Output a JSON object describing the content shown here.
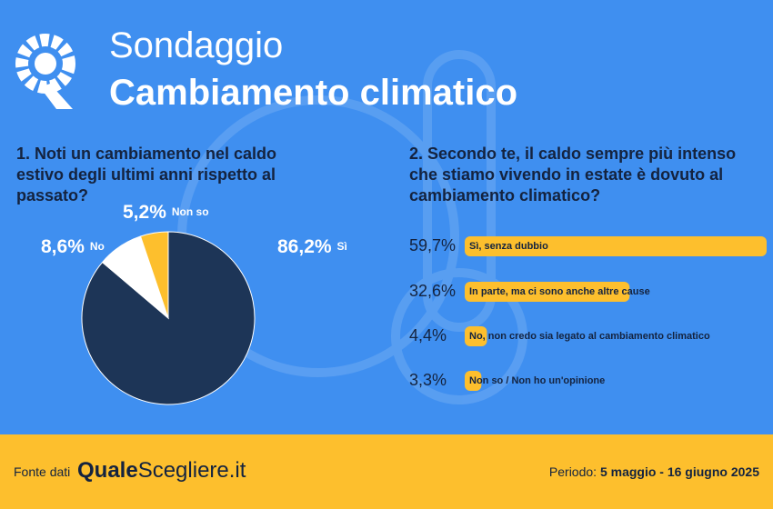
{
  "header": {
    "title_light": "Sondaggio",
    "title_bold": "Cambiamento climatico"
  },
  "chart_data": [
    {
      "type": "pie",
      "title": "1. Noti un cambiamento nel caldo estivo degli ultimi anni rispetto al passato?",
      "categories": [
        "Sì",
        "No",
        "Non so"
      ],
      "values": [
        86.2,
        8.6,
        5.2
      ],
      "value_labels": [
        "86,2%",
        "8,6%",
        "5,2%"
      ],
      "colors": [
        "#1d3557",
        "#ffffff",
        "#fdbf2d"
      ]
    },
    {
      "type": "bar",
      "title": "2. Secondo te, il caldo sempre più intenso che stiamo vivendo in estate è dovuto al cambiamento climatico?",
      "categories": [
        "Sì, senza dubbio",
        "In parte, ma ci sono anche altre cause",
        "No, non credo sia legato al cambiamento climatico",
        "Non so / Non ho un'opinione"
      ],
      "values": [
        59.7,
        32.6,
        4.4,
        3.3
      ],
      "value_labels": [
        "59,7%",
        "32,6%",
        "4,4%",
        "3,3%"
      ],
      "color": "#fdbf2d"
    }
  ],
  "footer": {
    "source_label": "Fonte dati",
    "logo_bold": "Quale",
    "logo_regular": "Scegliere.it",
    "period_label": "Periodo:",
    "period": "5 maggio - 16 giugno 2025"
  }
}
